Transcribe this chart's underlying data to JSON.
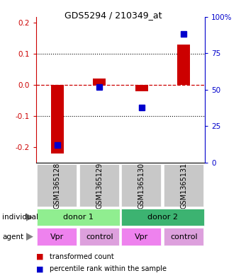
{
  "title": "GDS5294 / 210349_at",
  "samples": [
    "GSM1365128",
    "GSM1365129",
    "GSM1365130",
    "GSM1365131"
  ],
  "red_values": [
    -0.22,
    0.02,
    -0.02,
    0.13
  ],
  "blue_values_pct": [
    12,
    52,
    38,
    88
  ],
  "ylim_left": [
    -0.25,
    0.22
  ],
  "ylim_right": [
    0,
    100
  ],
  "yticks_left": [
    -0.2,
    -0.1,
    0.0,
    0.1,
    0.2
  ],
  "yticks_right": [
    0,
    25,
    50,
    75,
    100
  ],
  "ytick_labels_right": [
    "0",
    "25",
    "50",
    "75",
    "100%"
  ],
  "red_bar_width": 0.3,
  "blue_marker_size": 6,
  "donor1_color": "#90EE90",
  "donor2_color": "#3CB371",
  "agent_vpr_color": "#EE82EE",
  "agent_control_color": "#DDA0DD",
  "sample_box_color": "#C8C8C8",
  "samples_prefix": "GSM",
  "agents": [
    "Vpr",
    "control",
    "Vpr",
    "control"
  ],
  "red_color": "#CC0000",
  "blue_color": "#0000CC",
  "zero_line_color": "#CC0000"
}
